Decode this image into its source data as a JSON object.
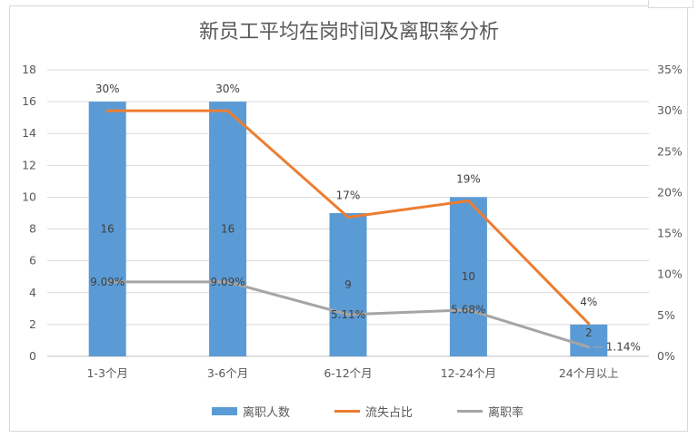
{
  "chart_data": {
    "type": "bar",
    "title": "新员工平均在岗时间及离职率分析",
    "categories": [
      "1-3个月",
      "3-6个月",
      "6-12个月",
      "12-24个月",
      "24个月以上"
    ],
    "series": [
      {
        "name": "离职人数",
        "type": "bar",
        "axis": "left",
        "color": "#5B9BD5",
        "values": [
          16,
          16,
          9,
          10,
          2
        ],
        "labels": [
          "16",
          "16",
          "9",
          "10",
          "2"
        ]
      },
      {
        "name": "流失占比",
        "type": "line",
        "axis": "right",
        "color": "#ED7D31",
        "values": [
          30,
          30,
          17,
          19,
          4
        ],
        "labels": [
          "30%",
          "30%",
          "17%",
          "19%",
          "4%"
        ]
      },
      {
        "name": "离职率",
        "type": "line",
        "axis": "right",
        "color": "#A5A5A5",
        "values": [
          9.09,
          9.09,
          5.11,
          5.68,
          1.14
        ],
        "labels": [
          "9.09%",
          "9.09%",
          "5.11%",
          "5.68%",
          "1.14%"
        ]
      }
    ],
    "y_left": {
      "min": 0,
      "max": 18,
      "step": 2,
      "ticks": [
        "0",
        "2",
        "4",
        "6",
        "8",
        "10",
        "12",
        "14",
        "16",
        "18"
      ]
    },
    "y_right": {
      "min": 0,
      "max": 35,
      "step": 5,
      "ticks": [
        "0%",
        "5%",
        "10%",
        "15%",
        "20%",
        "25%",
        "30%",
        "35%"
      ]
    },
    "grid": true,
    "legend_position": "bottom"
  }
}
